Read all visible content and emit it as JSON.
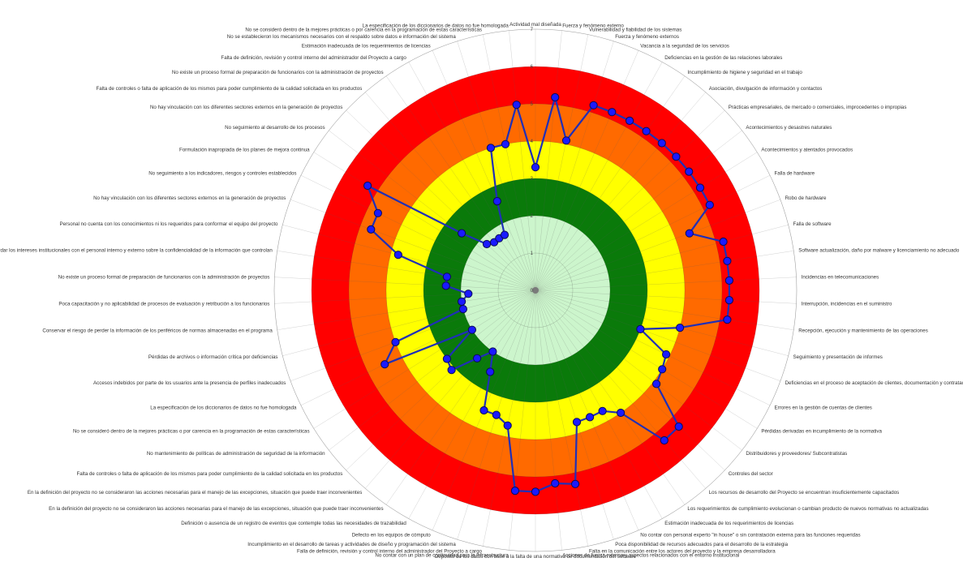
{
  "chart_data": {
    "type": "radar",
    "rlim": [
      0,
      7
    ],
    "ticks": [
      0,
      1,
      2,
      3,
      4,
      5,
      6,
      7
    ],
    "grid": true,
    "bands": [
      {
        "from": 0,
        "to": 2,
        "color": "#ccf5cc"
      },
      {
        "from": 2,
        "to": 3,
        "color": "#0a7a0a"
      },
      {
        "from": 3,
        "to": 4,
        "color": "#ffff00"
      },
      {
        "from": 4,
        "to": 5,
        "color": "#ff6a00"
      },
      {
        "from": 5,
        "to": 6,
        "color": "#ff0000"
      }
    ],
    "series_color": "#1f2fb8",
    "marker_color": "#1a1aff",
    "categories": [
      "Actividad mal diseñada",
      "Fuerza y fenómeno externo",
      "Vulnerabilidad y fiabilidad de los sistemas",
      "Fuerza y fenómeno externos",
      "Vacancia a la seguridad de los servicios",
      "Deficiencias en la gestión de las relaciones laborales",
      "Incumplimiento de higiene y seguridad en el trabajo",
      "Asociación, divulgación de información y contactos",
      "Prácticas empresariales, de mercado o comerciales, improcedentes o impropias",
      "Acontecimientos y desastres naturales",
      "Acontecimientos y atentados provocados",
      "Falla de hardware",
      "Robo de hardware",
      "Falla de software",
      "Software actualización, daño por malware y licenciamiento no adecuado",
      "Incidencias en telecomunicaciones",
      "Interrupción, incidencias en el suministro",
      "Recepción, ejecución y mantenimiento de las operaciones",
      "Seguimiento y presentación de informes",
      "Deficiencias en el proceso de aceptación de clientes, documentación y contratación",
      "Errores en la gestión de cuentas de clientes",
      "Pérdidas derivadas en incumplimiento de la normativa",
      "Distribuidores y proveedores/ Subcontratistas",
      "Controles del sector",
      "Los recursos de desarrollo del Proyecto se encuentran insuficientemente capacitados",
      "Los requerimientos de cumplimiento evolucionan o cambian producto de nuevos normativas no actualizadas",
      "Estimación inadecuada de los requerimientos de licencias",
      "No contar con personal experto \"in house\" o sin contratación externa para las funciones requeridas",
      "Poca disponibilidad de recursos adecuados para el desarrollo de la estrategia",
      "Falta en la comunicación entre los actores del proyecto y la empresa desarrolladora",
      "Acciones de fuerza externa y aspectos relacionados con el entorno institucional",
      "Depósito de los datos con base a la falta de una normativa de documentación del software",
      "No contar con un plan de continuidad para la infraestructura",
      "Falla de definición, revisión y control interno del administrador del Proyecto a cargo",
      "Incumplimiento en el desarrollo de tareas y actividades de diseño y programación del sistema",
      "Defecto en los equipos de cómputo",
      "Definición o ausencia de un registro de eventos que contemple todas las necesidades de trazabilidad",
      "En la definición del proyecto no se consideraron las acciones necesarias para el manejo de las excepciones, situación que puede traer inconvenientes",
      "En la definición del proyecto no se consideraron las acciones necesarias para el manejo de las excepciones, situación que puede traer inconvenientes",
      "Falta de controles o falta de aplicación de los mismos para poder cumplimiento de la calidad solicitada en los productos",
      "No mantenimiento de políticas de administración de seguridad de la información",
      "No se consideró dentro de la mejores prácticas o por carencia en la programación de estas características",
      "La especificación de los diccionarios de datos no fue homologada",
      "Accesos indebidos por parte de los usuarios ante la presencia de perfiles inadecuados",
      "Pérdidas de archivos o información crítica por deficiencias",
      "Conservar el riesgo de perder la información de los periféricos de normas almacenadas en el programa",
      "Poca capacitación y no aplicabilidad de procesos de evaluación y retribución a los funcionarios",
      "No existe un proceso formal de preparación de funcionarios con la administración de proyectos",
      "Salvaguardar los intereses institucionales con el personal interno y externo sobre la confidencialidad de la información que controlan",
      "Personal no cuenta con los conocimientos ni los requeridos para conformar el equipo del proyecto",
      "No hay vinculación con los diferentes sectores externos en la generación de proyectos",
      "No seguimiento a los indicadores, riesgos y controles establecidos",
      "Formulación inapropiada de los planes de mejora continua",
      "No seguimiento al desarrollo de los procesos",
      "No hay vinculación con los diferentes sectores externos en la generación de proyectos",
      "Falta de controles o falta de aplicación de los mismos para poder cumplimiento de la calidad solicitada en los productos",
      "No existe un proceso formal de preparación de funcionarios con la administración de proyectos",
      "Falta de definición, revisión y control interno del administrador del Proyecto a cargo",
      "Estimación inadecuada de los requerimientos de licencias",
      "No se establecieron los mecanismos necesarios con el respaldo sobre datos e información del sistema",
      "No se consideró dentro de la mejores prácticas o por carencia en la programación de estas características",
      "La especificación de los diccionarios de datos no fue homologada"
    ],
    "values": [
      3.3,
      5.2,
      4.1,
      5.2,
      5.2,
      5.2,
      5.2,
      5.2,
      5.2,
      5.2,
      5.2,
      5.2,
      4.4,
      5.2,
      5.2,
      5.2,
      5.2,
      5.2,
      4.0,
      3.0,
      3.9,
      4.0,
      4.1,
      5.3,
      5.3,
      4.0,
      3.7,
      3.7,
      3.7,
      5.3,
      5.2,
      5.4,
      5.4,
      3.7,
      3.5,
      3.5,
      2.5,
      2.0,
      2.4,
      3.1,
      3.0,
      2.0,
      4.5,
      4.0,
      2.0,
      2.0,
      1.8,
      2.4,
      2.4,
      3.8,
      4.7,
      4.7,
      5.3,
      2.5,
      1.8,
      1.7,
      1.7,
      1.7,
      2.6,
      4.0,
      4.0,
      5.0
    ]
  }
}
